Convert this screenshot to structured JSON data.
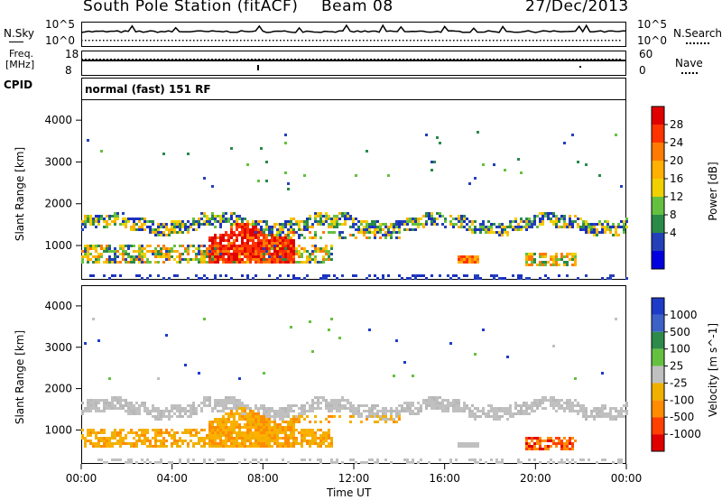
{
  "header": {
    "station": "South Pole Station (fitACF)",
    "beam": "Beam 08",
    "date": "27/Dec/2013"
  },
  "top_panels": {
    "nsky_label": "N.Sky",
    "nsky_ticks": [
      "10^5",
      "10^0"
    ],
    "nsearch_label": "N.Search",
    "nsearch_ticks": [
      "10^5",
      "10^0"
    ],
    "freq_label_1": "Freq.",
    "freq_label_2": "[MHz]",
    "freq_ticks": [
      "18",
      "8"
    ],
    "nave_label": "Nave",
    "nave_ticks": [
      "60",
      "0"
    ],
    "cpid_label": "CPID",
    "cpid_value": "normal (fast) 151 RF"
  },
  "chart_data": [
    {
      "type": "heatmap",
      "name": "power-panel",
      "ylabel": "Slant Range [km]",
      "yticks": [
        1000,
        2000,
        3000,
        4000
      ],
      "ylim": [
        180,
        4500
      ],
      "xlim": [
        0,
        24
      ],
      "colorbar_label": "Power [dB]",
      "colorbar_ticks": [
        "28",
        "24",
        "20",
        "16",
        "12",
        "8",
        "4"
      ],
      "colorbar_colors": [
        "#e00000",
        "#ff3300",
        "#ff7a00",
        "#ffb000",
        "#f0d000",
        "#66c040",
        "#2a8a4a",
        "#2440b8",
        "#0000e0"
      ],
      "regions": [
        {
          "x": [
            0,
            24
          ],
          "y": [
            1400,
            1780
          ],
          "level": "mixed"
        },
        {
          "x": [
            0,
            11
          ],
          "y": [
            500,
            1000
          ],
          "level": "high"
        },
        {
          "x": [
            5.5,
            9.5
          ],
          "y": [
            550,
            1400
          ],
          "level": "max"
        }
      ]
    },
    {
      "type": "heatmap",
      "name": "velocity-panel",
      "ylabel": "Slant Range [km]",
      "yticks": [
        1000,
        2000,
        3000,
        4000
      ],
      "ylim": [
        180,
        4500
      ],
      "xlim": [
        0,
        24
      ],
      "xticks": [
        "00:00",
        "04:00",
        "08:00",
        "12:00",
        "16:00",
        "20:00",
        "00:00"
      ],
      "xlabel": "Time UT",
      "colorbar_label": "Velocity [m s^-1]",
      "colorbar_ticks": [
        "1000",
        "500",
        "100",
        "25",
        "-25",
        "-100",
        "-500",
        "-1000"
      ],
      "colorbar_colors": [
        "#1c3cc8",
        "#3c62c8",
        "#2e8a4a",
        "#66c040",
        "#c0c0c0",
        "#f0b000",
        "#ff8c00",
        "#ff4000",
        "#e00000"
      ],
      "regions": [
        {
          "x": [
            0,
            24
          ],
          "y": [
            1400,
            1780
          ],
          "level": "ground"
        },
        {
          "x": [
            0,
            11
          ],
          "y": [
            500,
            1000
          ],
          "level": "negative"
        }
      ]
    }
  ]
}
